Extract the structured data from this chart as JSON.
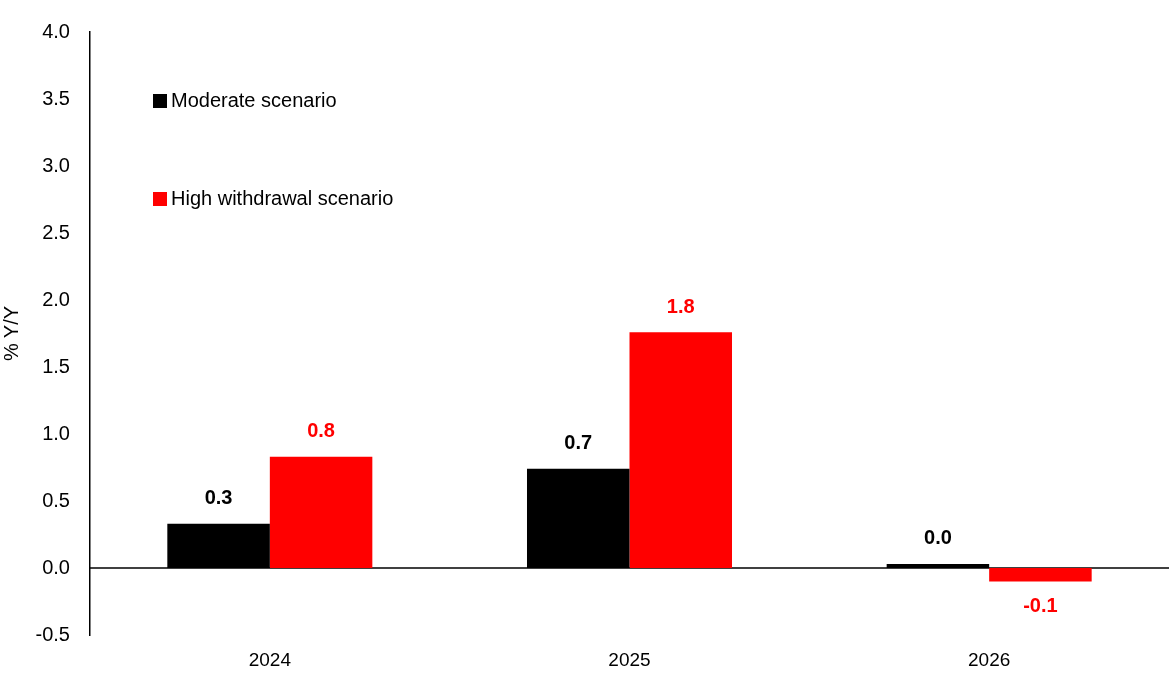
{
  "chart_data": {
    "type": "bar",
    "ylabel": "% Y/Y",
    "categories": [
      "2024",
      "2025",
      "2026"
    ],
    "series": [
      {
        "name": "Moderate scenario",
        "color": "#000000",
        "values": [
          0.33,
          0.74,
          0.03
        ],
        "value_labels": [
          "0.3",
          "0.7",
          "0.0"
        ]
      },
      {
        "name": "High withdrawal scenario",
        "color": "#ff0000",
        "values": [
          0.83,
          1.76,
          -0.1
        ],
        "value_labels": [
          "0.8",
          "1.8",
          "-0.1"
        ]
      }
    ],
    "ylim": [
      -0.5,
      4
    ],
    "yticks": [
      {
        "value": -0.5,
        "label": "-0.5"
      },
      {
        "value": 0,
        "label": "0.0"
      },
      {
        "value": 0.5,
        "label": "0.5"
      },
      {
        "value": 1,
        "label": "1.0"
      },
      {
        "value": 1.5,
        "label": "1.5"
      },
      {
        "value": 2,
        "label": "2.0"
      },
      {
        "value": 2.5,
        "label": "2.5"
      },
      {
        "value": 3,
        "label": "3.0"
      },
      {
        "value": 3.5,
        "label": "3.5"
      },
      {
        "value": 4,
        "label": "4.0"
      }
    ],
    "ref_lines": [
      {
        "axis": "y",
        "value": 0,
        "color": "#000000"
      }
    ],
    "grid": false,
    "legend": "top left"
  }
}
